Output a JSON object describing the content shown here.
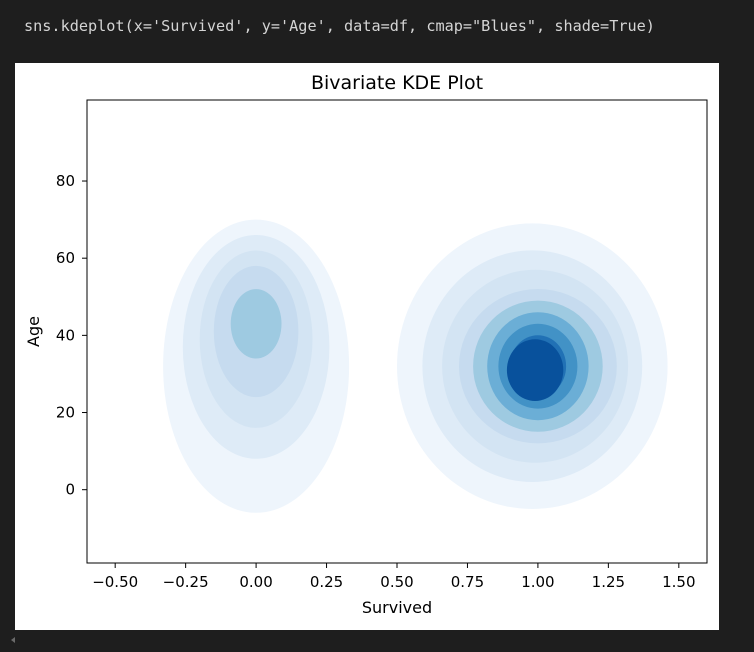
{
  "code": {
    "source": "sns.kdeplot(x='Survived', y='Age', data=df, cmap=\"Blues\", shade=True)"
  },
  "chart_data": {
    "type": "kde-contour",
    "title": "Bivariate KDE Plot",
    "xlabel": "Survived",
    "ylabel": "Age",
    "xlim": [
      -0.6,
      1.6
    ],
    "ylim": [
      -19,
      101
    ],
    "x_ticks": [
      -0.5,
      -0.25,
      0.0,
      0.25,
      0.5,
      0.75,
      1.0,
      1.25,
      1.5
    ],
    "x_tick_labels": [
      "−0.50",
      "−0.25",
      "0.00",
      "0.25",
      "0.50",
      "0.75",
      "1.00",
      "1.25",
      "1.50"
    ],
    "y_ticks": [
      0,
      20,
      40,
      60,
      80
    ],
    "y_tick_labels": [
      "0",
      "20",
      "40",
      "60",
      "80"
    ],
    "colormap": "Blues",
    "shade": true,
    "grid": false,
    "levels": [
      {
        "level": 1,
        "color": "#eef5fc",
        "centers": [
          {
            "x": 0.0,
            "y": 32,
            "rx": 0.33,
            "ry": 38
          },
          {
            "x": 0.98,
            "y": 32,
            "rx": 0.48,
            "ry": 37
          }
        ]
      },
      {
        "level": 2,
        "color": "#deebf7",
        "centers": [
          {
            "x": 0.0,
            "y": 37,
            "rx": 0.26,
            "ry": 29
          },
          {
            "x": 0.98,
            "y": 32,
            "rx": 0.39,
            "ry": 30
          }
        ]
      },
      {
        "level": 3,
        "color": "#d3e4f3",
        "centers": [
          {
            "x": 0.0,
            "y": 39,
            "rx": 0.2,
            "ry": 23
          },
          {
            "x": 0.99,
            "y": 32,
            "rx": 0.33,
            "ry": 25
          }
        ]
      },
      {
        "level": 4,
        "color": "#c6dbef",
        "centers": [
          {
            "x": 0.0,
            "y": 41,
            "rx": 0.15,
            "ry": 17
          },
          {
            "x": 1.0,
            "y": 32,
            "rx": 0.28,
            "ry": 20
          }
        ]
      },
      {
        "level": 5,
        "color": "#9ecae1",
        "centers": [
          {
            "x": 0.0,
            "y": 43,
            "rx": 0.09,
            "ry": 9
          },
          {
            "x": 1.0,
            "y": 32,
            "rx": 0.23,
            "ry": 17
          }
        ]
      },
      {
        "level": 6,
        "color": "#6baed6",
        "centers": [
          {
            "x": 1.0,
            "y": 32,
            "rx": 0.18,
            "ry": 14
          }
        ]
      },
      {
        "level": 7,
        "color": "#4292c6",
        "centers": [
          {
            "x": 1.0,
            "y": 32,
            "rx": 0.14,
            "ry": 11
          }
        ]
      },
      {
        "level": 8,
        "color": "#2171b5",
        "centers": [
          {
            "x": 1.0,
            "y": 32,
            "rx": 0.1,
            "ry": 8
          }
        ]
      },
      {
        "level": 9,
        "color": "#08519c",
        "centers": [
          {
            "x": 0.99,
            "y": 31,
            "rx": 0.1,
            "ry": 8
          }
        ]
      }
    ]
  }
}
